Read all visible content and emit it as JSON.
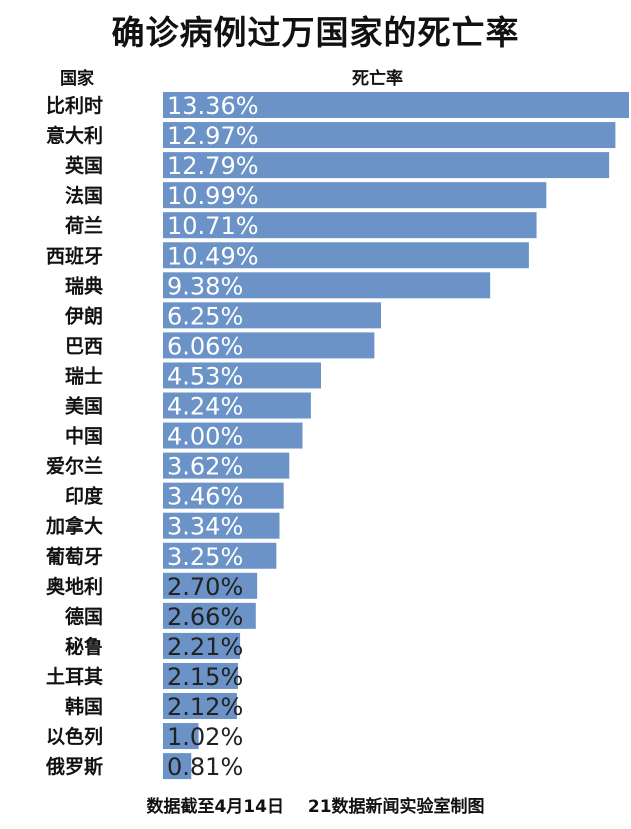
{
  "chart_data": {
    "type": "bar",
    "orientation": "horizontal",
    "title": "确诊病例过万国家的死亡率",
    "xlabel": "死亡率",
    "ylabel": "国家",
    "unit": "%",
    "bar_color": "#6b93c8",
    "xlim": [
      0,
      13.36
    ],
    "categories": [
      "比利时",
      "意大利",
      "英国",
      "法国",
      "荷兰",
      "西班牙",
      "瑞典",
      "伊朗",
      "巴西",
      "瑞士",
      "美国",
      "中国",
      "爱尔兰",
      "印度",
      "加拿大",
      "葡萄牙",
      "奥地利",
      "德国",
      "秘鲁",
      "土耳其",
      "韩国",
      "以色列",
      "俄罗斯"
    ],
    "values": [
      13.36,
      12.97,
      12.79,
      10.99,
      10.71,
      10.49,
      9.38,
      6.25,
      6.06,
      4.53,
      4.24,
      4.0,
      3.62,
      3.46,
      3.34,
      3.25,
      2.7,
      2.66,
      2.21,
      2.15,
      2.12,
      1.02,
      0.81
    ],
    "labels": [
      "13.36%",
      "12.97%",
      "12.79%",
      "10.99%",
      "10.71%",
      "10.49%",
      "9.38%",
      "6.25%",
      "6.06%",
      "4.53%",
      "4.24%",
      "4.00%",
      "3.62%",
      "3.46%",
      "3.34%",
      "3.25%",
      "2.70%",
      "2.66%",
      "2.21%",
      "2.15%",
      "2.12%",
      "1.02%",
      "0.81%"
    ]
  },
  "footer": {
    "note": "数据截至4月14日",
    "source": "21数据新闻实验室制图"
  }
}
